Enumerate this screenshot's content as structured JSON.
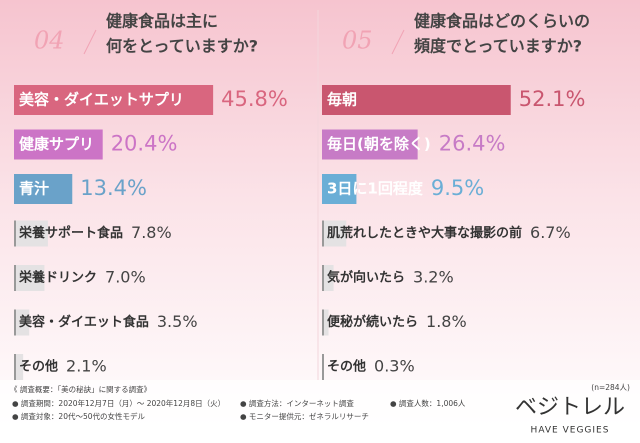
{
  "charts": [
    {
      "chart_data": {
        "type": "bar",
        "number": "04",
        "title": [
          "健康食品は主に",
          "何をとっていますか?"
        ],
        "categories": [
          "美容・ダイエットサプリ",
          "健康サプリ",
          "青汁",
          "栄養サポート食品",
          "栄養ドリンク",
          "美容・ダイエット食品",
          "その他"
        ],
        "values": [
          45.8,
          20.4,
          13.4,
          7.8,
          7.0,
          3.5,
          2.1
        ],
        "value_labels": [
          "45.8%",
          "20.4%",
          "13.4%",
          "7.8%",
          "7.0%",
          "3.5%",
          "2.1%"
        ],
        "colors": [
          "#d9667f",
          "#cc74c6",
          "#6aa2c9",
          "#e4e2e3",
          "#e4e2e3",
          "#e4e2e3",
          "#e4e2e3"
        ],
        "xlim": [
          0,
          46
        ]
      }
    },
    {
      "chart_data": {
        "type": "bar",
        "number": "05",
        "title": [
          "健康食品はどのくらいの",
          "頻度でとっていますか?"
        ],
        "categories": [
          "毎朝",
          "毎日(朝を除く)",
          "3日に1回程度",
          "肌荒れしたときや大事な撮影の前",
          "気が向いたら",
          "便秘が続いたら",
          "その他"
        ],
        "values": [
          52.1,
          26.4,
          9.5,
          6.7,
          3.2,
          1.8,
          0.3
        ],
        "value_labels": [
          "52.1%",
          "26.4%",
          "9.5%",
          "6.7%",
          "3.2%",
          "1.8%",
          "0.3%"
        ],
        "colors": [
          "#c9566f",
          "#c77bc6",
          "#6aaed6",
          "#e4e2e3",
          "#e4e2e3",
          "#e4e2e3",
          "#e4e2e3"
        ],
        "xlim": [
          0,
          53
        ]
      }
    }
  ],
  "footer": {
    "heading": "《 調査概要：「美の秘訣」に関する調査》",
    "items": [
      "● 調査期間：2020年12月7日（月）～ 2020年12月8日（火）",
      "● 調査方法：インターネット調査",
      "● 調査人数：1,006人",
      "● 調査対象：20代～50代の女性モデル",
      "● モニター提供元：ゼネラルリサーチ"
    ],
    "sample": "(n=284人)",
    "logo": "ベジトレル",
    "logo_sub": "HAVE VEGGIES"
  }
}
